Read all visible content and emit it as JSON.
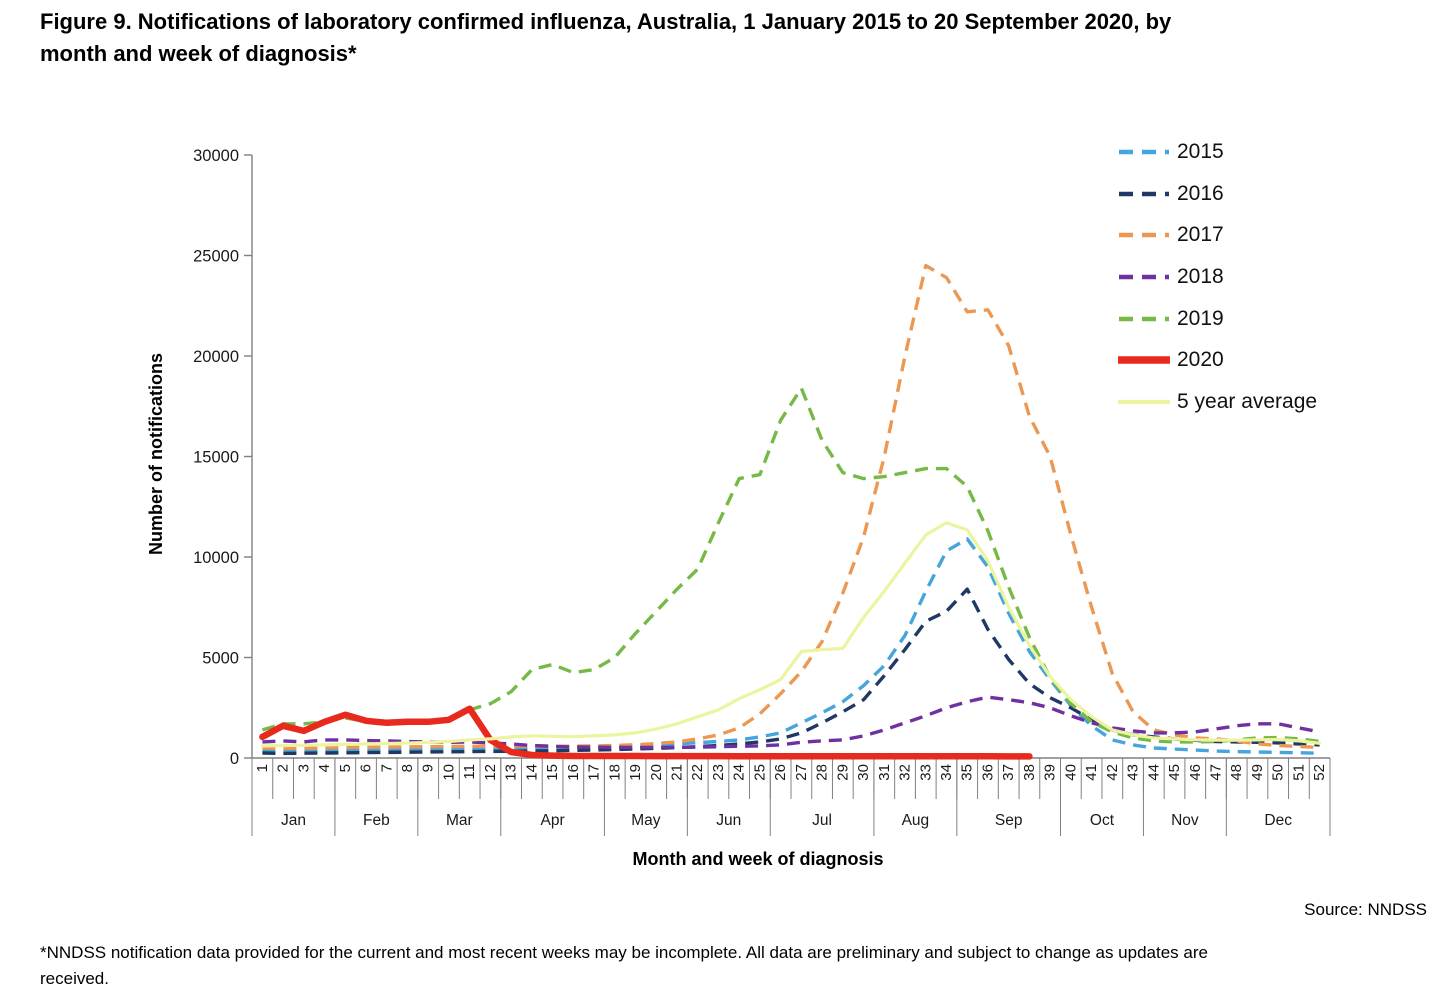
{
  "figure": {
    "title": "Figure 9. Notifications of laboratory confirmed influenza, Australia, 1 January 2015 to 20 September 2020, by\nmonth and week of diagnosis*",
    "source": "Source: NNDSS",
    "footnote": "*NNDSS notification data provided for the current and most recent weeks may be incomplete. All data are preliminary and subject to change as updates are\nreceived."
  },
  "chart_data": {
    "type": "line",
    "title": "",
    "xlabel": "Month and week of diagnosis",
    "ylabel": "Number of notifications",
    "ylim": [
      0,
      30000
    ],
    "ytick_interval": 5000,
    "grid": false,
    "legend_position": "right-top",
    "x_weeks": [
      1,
      2,
      3,
      4,
      5,
      6,
      7,
      8,
      9,
      10,
      11,
      12,
      13,
      14,
      15,
      16,
      17,
      18,
      19,
      20,
      21,
      22,
      23,
      24,
      25,
      26,
      27,
      28,
      29,
      30,
      31,
      32,
      33,
      34,
      35,
      36,
      37,
      38,
      39,
      40,
      41,
      42,
      43,
      44,
      45,
      46,
      47,
      48,
      49,
      50,
      51,
      52
    ],
    "month_groups": [
      {
        "label": "Jan",
        "start": 1,
        "end": 4
      },
      {
        "label": "Feb",
        "start": 5,
        "end": 8
      },
      {
        "label": "Mar",
        "start": 9,
        "end": 12
      },
      {
        "label": "Apr",
        "start": 13,
        "end": 17
      },
      {
        "label": "May",
        "start": 18,
        "end": 21
      },
      {
        "label": "Jun",
        "start": 22,
        "end": 25
      },
      {
        "label": "Jul",
        "start": 26,
        "end": 30
      },
      {
        "label": "Aug",
        "start": 31,
        "end": 34
      },
      {
        "label": "Sep",
        "start": 35,
        "end": 39
      },
      {
        "label": "Oct",
        "start": 40,
        "end": 43
      },
      {
        "label": "Nov",
        "start": 44,
        "end": 47
      },
      {
        "label": "Dec",
        "start": 48,
        "end": 52
      }
    ],
    "series": [
      {
        "name": "2015",
        "color": "#45a5dc",
        "style": "dashed",
        "width": 3.4,
        "values": [
          350,
          320,
          330,
          350,
          370,
          380,
          400,
          420,
          430,
          450,
          470,
          480,
          500,
          500,
          510,
          530,
          550,
          570,
          600,
          650,
          700,
          760,
          820,
          900,
          1050,
          1250,
          1750,
          2250,
          2800,
          3600,
          4600,
          6100,
          8300,
          10300,
          10900,
          9500,
          7200,
          5300,
          3900,
          2600,
          1600,
          900,
          650,
          500,
          450,
          400,
          350,
          320,
          300,
          280,
          260,
          240
        ]
      },
      {
        "name": "2016",
        "color": "#1f3864",
        "style": "dashed",
        "width": 3.4,
        "values": [
          250,
          230,
          240,
          250,
          260,
          270,
          280,
          290,
          300,
          310,
          320,
          330,
          340,
          350,
          360,
          380,
          400,
          420,
          450,
          480,
          520,
          560,
          620,
          700,
          800,
          950,
          1250,
          1750,
          2300,
          2900,
          4100,
          5400,
          6800,
          7300,
          8400,
          6400,
          4900,
          3700,
          3000,
          2500,
          1900,
          1400,
          1150,
          1050,
          950,
          880,
          820,
          800,
          780,
          750,
          700,
          650
        ]
      },
      {
        "name": "2017",
        "color": "#ec9853",
        "style": "dashed",
        "width": 3.4,
        "values": [
          500,
          480,
          490,
          500,
          520,
          530,
          540,
          550,
          560,
          570,
          580,
          590,
          600,
          590,
          580,
          590,
          600,
          620,
          660,
          720,
          800,
          950,
          1150,
          1500,
          2200,
          3200,
          4300,
          5800,
          8200,
          11000,
          15000,
          20000,
          24500,
          23900,
          22200,
          22300,
          20500,
          17000,
          15000,
          11100,
          7500,
          4200,
          2300,
          1400,
          1150,
          1000,
          950,
          850,
          700,
          620,
          570,
          520
        ]
      },
      {
        "name": "2018",
        "color": "#7030a0",
        "style": "dashed",
        "width": 3.4,
        "values": [
          800,
          850,
          800,
          900,
          900,
          870,
          850,
          820,
          800,
          780,
          800,
          750,
          700,
          620,
          580,
          550,
          540,
          530,
          520,
          520,
          530,
          540,
          560,
          580,
          600,
          650,
          780,
          850,
          900,
          1100,
          1400,
          1750,
          2100,
          2500,
          2800,
          3030,
          2900,
          2750,
          2500,
          2100,
          1750,
          1500,
          1350,
          1250,
          1250,
          1300,
          1450,
          1600,
          1700,
          1700,
          1500,
          1300
        ]
      },
      {
        "name": "2019",
        "color": "#76b947",
        "style": "dashed",
        "width": 3.4,
        "values": [
          1400,
          1700,
          1700,
          1800,
          2000,
          1800,
          1750,
          1800,
          1850,
          1950,
          2400,
          2700,
          3300,
          4400,
          4650,
          4250,
          4400,
          5000,
          6200,
          7300,
          8400,
          9400,
          11700,
          13900,
          14100,
          16800,
          18400,
          15800,
          14200,
          13900,
          14000,
          14200,
          14400,
          14400,
          13500,
          11300,
          8500,
          6000,
          4000,
          2700,
          1800,
          1300,
          1000,
          850,
          800,
          800,
          820,
          900,
          1000,
          1020,
          950,
          820
        ]
      },
      {
        "name": "2020",
        "color": "#e8291d",
        "style": "solid",
        "width": 6.5,
        "values": [
          1050,
          1600,
          1350,
          1800,
          2150,
          1850,
          1750,
          1800,
          1800,
          1900,
          2450,
          900,
          300,
          150,
          120,
          100,
          100,
          100,
          100,
          95,
          95,
          95,
          95,
          90,
          90,
          90,
          90,
          90,
          90,
          90,
          90,
          85,
          85,
          85,
          85,
          85,
          80,
          80,
          null,
          null,
          null,
          null,
          null,
          null,
          null,
          null,
          null,
          null,
          null,
          null,
          null,
          null
        ]
      },
      {
        "name": "5 year average",
        "color": "#edf4a0",
        "style": "solid",
        "width": 3.2,
        "values": [
          600,
          620,
          630,
          650,
          680,
          700,
          720,
          740,
          780,
          820,
          900,
          950,
          1050,
          1100,
          1080,
          1060,
          1100,
          1150,
          1250,
          1450,
          1700,
          2050,
          2400,
          2950,
          3400,
          3900,
          5300,
          5400,
          5450,
          7000,
          8300,
          9700,
          11100,
          11700,
          11350,
          9800,
          7500,
          5600,
          4050,
          2900,
          2050,
          1400,
          1150,
          1000,
          950,
          900,
          890,
          890,
          900,
          920,
          850,
          730
        ]
      }
    ]
  }
}
